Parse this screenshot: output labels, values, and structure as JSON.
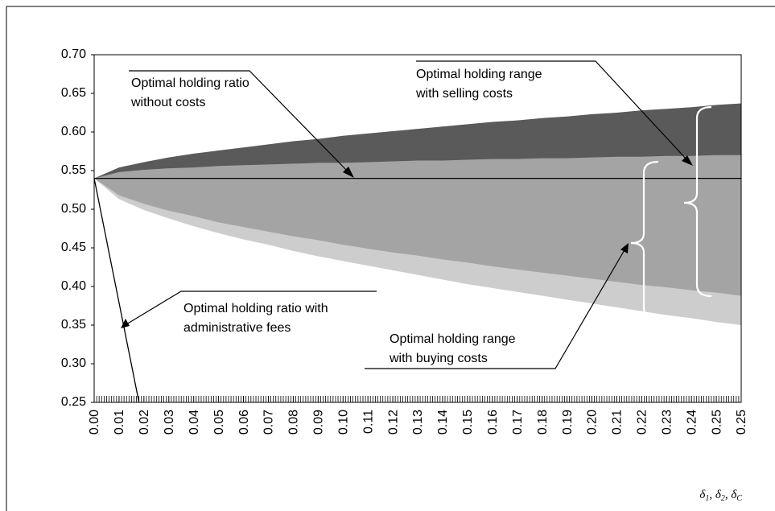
{
  "chart_data": {
    "type": "area",
    "categories": [
      "0.00",
      "0.01",
      "0.02",
      "0.03",
      "0.04",
      "0.05",
      "0.06",
      "0.07",
      "0.08",
      "0.09",
      "0.10",
      "0.11",
      "0.12",
      "0.13",
      "0.14",
      "0.15",
      "0.16",
      "0.17",
      "0.18",
      "0.19",
      "0.20",
      "0.21",
      "0.22",
      "0.23",
      "0.24",
      "0.25",
      "0.25"
    ],
    "xlabel": [
      "δ",
      "1",
      ", δ",
      "2",
      ", δ",
      "C"
    ],
    "ylim": [
      0.25,
      0.7
    ],
    "yticks": [
      0.25,
      {
        "value": 0.3,
        "label": "0.30"
      },
      0.35,
      {
        "value": 0.4,
        "label": "0.40"
      },
      0.45,
      {
        "value": 0.5,
        "label": "0.50"
      },
      0.55,
      {
        "value": 0.6,
        "label": "0.60"
      },
      0.65,
      {
        "value": 0.7,
        "label": "0.70"
      }
    ],
    "series": [
      {
        "kind": "area",
        "color": "#5a5a5a",
        "values": [
          0.54,
          0.554,
          0.561,
          0.567,
          0.572,
          0.576,
          0.58,
          0.584,
          0.588,
          0.591,
          0.595,
          0.598,
          0.601,
          0.604,
          0.607,
          0.61,
          0.613,
          0.615,
          0.618,
          0.62,
          0.623,
          0.625,
          0.628,
          0.63,
          0.632,
          0.635,
          0.637
        ]
      },
      {
        "kind": "area",
        "color": "#a4a4a4",
        "values": [
          0.54,
          0.548,
          0.551,
          0.553,
          0.554,
          0.556,
          0.557,
          0.558,
          0.559,
          0.56,
          0.56,
          0.561,
          0.562,
          0.563,
          0.563,
          0.564,
          0.565,
          0.565,
          0.566,
          0.566,
          0.567,
          0.568,
          0.568,
          0.569,
          0.569,
          0.57,
          0.57
        ]
      },
      {
        "kind": "area",
        "color": "#cdcdcd",
        "values": [
          0.54,
          0.513,
          0.499,
          0.488,
          0.478,
          0.469,
          0.461,
          0.454,
          0.446,
          0.439,
          0.433,
          0.427,
          0.421,
          0.415,
          0.409,
          0.403,
          0.398,
          0.393,
          0.388,
          0.383,
          0.378,
          0.373,
          0.368,
          0.363,
          0.359,
          0.354,
          0.35
        ]
      },
      {
        "kind": "area",
        "color": "#a4a4a4",
        "values": [
          0.54,
          0.518,
          0.507,
          0.498,
          0.491,
          0.483,
          0.477,
          0.471,
          0.465,
          0.46,
          0.454,
          0.449,
          0.444,
          0.44,
          0.435,
          0.431,
          0.426,
          0.422,
          0.418,
          0.414,
          0.41,
          0.406,
          0.402,
          0.399,
          0.395,
          0.392,
          0.388
        ]
      },
      {
        "kind": "baseline",
        "color": "#000000",
        "values": [
          0.54,
          0.54,
          0.54,
          0.54,
          0.54,
          0.54,
          0.54,
          0.54,
          0.54,
          0.54,
          0.54,
          0.54,
          0.54,
          0.54,
          0.54,
          0.54,
          0.54,
          0.54,
          0.54,
          0.54,
          0.54,
          0.54,
          0.54,
          0.54,
          0.54,
          0.54,
          0.54
        ]
      },
      {
        "kind": "line",
        "color": "#000000",
        "values": [
          0.54,
          0.379,
          0.218,
          null,
          null,
          null,
          null,
          null,
          null,
          null,
          null,
          null,
          null,
          null,
          null,
          null,
          null,
          null,
          null,
          null,
          null,
          null,
          null,
          null,
          null,
          null,
          null
        ]
      }
    ],
    "annotations": [
      {
        "lines": [
          "Optimal holding ratio",
          "without costs"
        ]
      },
      {
        "lines": [
          "Optimal holding range",
          "with selling costs"
        ]
      },
      {
        "lines": [
          "Optimal holding ratio with",
          "administrative fees"
        ]
      },
      {
        "lines": [
          "Optimal holding range",
          "with buying costs"
        ]
      }
    ]
  }
}
